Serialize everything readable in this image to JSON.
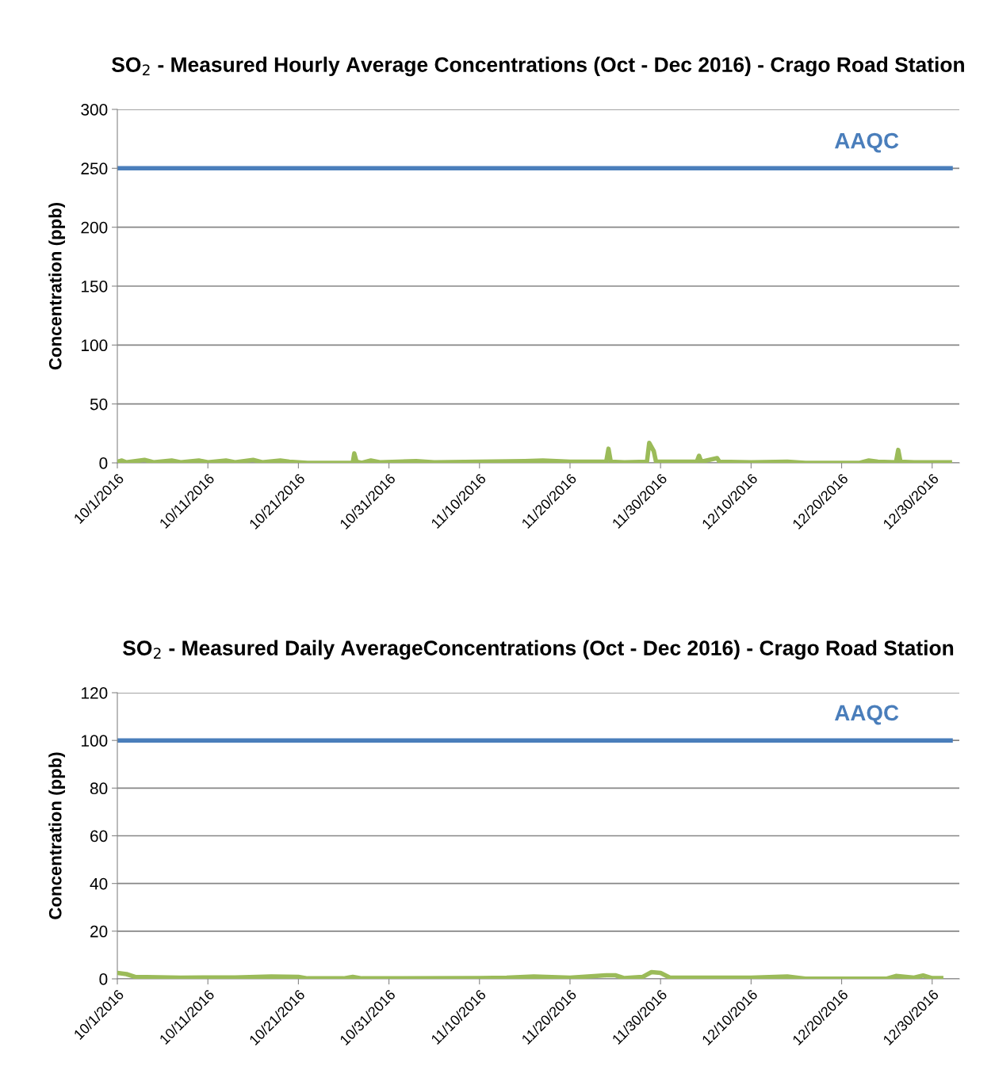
{
  "chart_data": [
    {
      "type": "line",
      "title": "SO$_{2}$ - Measured Hourly Average Concentrations (Oct - Dec 2016) - Crago Road Station",
      "ylabel": "Concentration (ppb)",
      "xlim": [
        "2016-10-01",
        "2017-01-02"
      ],
      "ylim": [
        0,
        300
      ],
      "yticks": [
        0,
        50,
        100,
        150,
        200,
        250,
        300
      ],
      "xticks": [
        {
          "value": "2016-10-01",
          "label": "10/1/2016"
        },
        {
          "value": "2016-10-11",
          "label": "10/11/2016"
        },
        {
          "value": "2016-10-21",
          "label": "10/21/2016"
        },
        {
          "value": "2016-10-31",
          "label": "10/31/2016"
        },
        {
          "value": "2016-11-10",
          "label": "11/10/2016"
        },
        {
          "value": "2016-11-20",
          "label": "11/20/2016"
        },
        {
          "value": "2016-11-30",
          "label": "11/30/2016"
        },
        {
          "value": "2016-12-10",
          "label": "12/10/2016"
        },
        {
          "value": "2016-12-20",
          "label": "12/20/2016"
        },
        {
          "value": "2016-12-30",
          "label": "12/30/2016"
        }
      ],
      "grid": "y",
      "marker": "none",
      "line_style": "solid",
      "series": [
        {
          "color": "#9bbb59",
          "x": [
            "2016-10-01T00:00",
            "2016-10-01T12:00",
            "2016-10-02T00:00",
            "2016-10-04T00:00",
            "2016-10-05T00:00",
            "2016-10-07T00:00",
            "2016-10-08T00:00",
            "2016-10-10T00:00",
            "2016-10-11T00:00",
            "2016-10-13T00:00",
            "2016-10-14T00:00",
            "2016-10-16T00:00",
            "2016-10-17T00:00",
            "2016-10-19T00:00",
            "2016-10-20T00:00",
            "2016-10-21T00:00",
            "2016-10-22T00:00",
            "2016-10-26T00:00",
            "2016-10-27T00:00",
            "2016-10-27T04:00",
            "2016-10-27T10:00",
            "2016-10-28T00:00",
            "2016-10-29T00:00",
            "2016-10-30T00:00",
            "2016-11-03T00:00",
            "2016-11-05T00:00",
            "2016-11-10T00:00",
            "2016-11-15T00:00",
            "2016-11-17T00:00",
            "2016-11-20T00:00",
            "2016-11-23T00:00",
            "2016-11-24T00:00",
            "2016-11-24T06:00",
            "2016-11-24T12:00",
            "2016-11-26T00:00",
            "2016-11-28T12:00",
            "2016-11-28T18:00",
            "2016-11-29T06:00",
            "2016-11-29T12:00",
            "2016-12-01T00:00",
            "2016-12-04T00:00",
            "2016-12-04T06:00",
            "2016-12-04T12:00",
            "2016-12-06T06:00",
            "2016-12-06T12:00",
            "2016-12-10T00:00",
            "2016-12-14T00:00",
            "2016-12-16T00:00",
            "2016-12-22T00:00",
            "2016-12-23T00:00",
            "2016-12-24T00:00",
            "2016-12-26T00:00",
            "2016-12-26T06:00",
            "2016-12-26T12:00",
            "2016-12-28T00:00",
            "2016-12-31T23:00"
          ],
          "values": [
            1,
            2,
            0.5,
            2.5,
            0.5,
            2,
            0.5,
            2,
            0.5,
            2,
            0.5,
            2.5,
            0.5,
            2,
            1,
            0.5,
            0,
            0,
            0,
            8,
            1,
            0,
            2,
            0.5,
            1.5,
            0.5,
            1,
            1.5,
            2,
            1,
            1,
            1,
            12,
            1,
            0.5,
            1,
            17,
            10,
            1,
            1,
            1,
            6,
            1,
            4,
            1,
            0.5,
            1,
            0,
            0,
            2,
            1,
            0.5,
            11,
            1,
            0.5,
            0.5
          ]
        }
      ],
      "ref_lines": [
        {
          "axis": "y",
          "value": 250,
          "label": "AAQC",
          "color": "#4a7ebb"
        }
      ]
    },
    {
      "type": "line",
      "title": "SO$_{2}$ - Measured Daily AverageConcentrations (Oct - Dec 2016) - Crago Road Station",
      "ylabel": "Concentration (ppb)",
      "xlim": [
        "2016-10-01",
        "2017-01-02"
      ],
      "ylim": [
        0,
        120
      ],
      "yticks": [
        0,
        20,
        40,
        60,
        80,
        100,
        120
      ],
      "xticks": [
        {
          "value": "2016-10-01",
          "label": "10/1/2016"
        },
        {
          "value": "2016-10-11",
          "label": "10/11/2016"
        },
        {
          "value": "2016-10-21",
          "label": "10/21/2016"
        },
        {
          "value": "2016-10-31",
          "label": "10/31/2016"
        },
        {
          "value": "2016-11-10",
          "label": "11/10/2016"
        },
        {
          "value": "2016-11-20",
          "label": "11/20/2016"
        },
        {
          "value": "2016-11-30",
          "label": "11/30/2016"
        },
        {
          "value": "2016-12-10",
          "label": "12/10/2016"
        },
        {
          "value": "2016-12-20",
          "label": "12/20/2016"
        },
        {
          "value": "2016-12-30",
          "label": "12/30/2016"
        }
      ],
      "grid": "y",
      "marker": "none",
      "line_style": "solid",
      "series": [
        {
          "color": "#9bbb59",
          "x": [
            "2016-10-01",
            "2016-10-02",
            "2016-10-03",
            "2016-10-08",
            "2016-10-14",
            "2016-10-18",
            "2016-10-21",
            "2016-10-22",
            "2016-10-26",
            "2016-10-27",
            "2016-10-28",
            "2016-11-10",
            "2016-11-13",
            "2016-11-16",
            "2016-11-20",
            "2016-11-24",
            "2016-11-25",
            "2016-11-26",
            "2016-11-28",
            "2016-11-29",
            "2016-11-30",
            "2016-12-01",
            "2016-12-10",
            "2016-12-14",
            "2016-12-16",
            "2016-12-25",
            "2016-12-26",
            "2016-12-28",
            "2016-12-29",
            "2016-12-30",
            "2016-12-31"
          ],
          "values": [
            2.5,
            2,
            0.8,
            0.5,
            0.6,
            1,
            0.8,
            0.2,
            0.2,
            0.8,
            0.2,
            0.3,
            0.5,
            1,
            0.5,
            1.5,
            1.5,
            0.3,
            0.8,
            2.8,
            2.5,
            0.6,
            0.5,
            1,
            0.1,
            0.1,
            1.2,
            0.5,
            1.4,
            0.3,
            0.3
          ]
        }
      ],
      "ref_lines": [
        {
          "axis": "y",
          "value": 100,
          "label": "AAQC",
          "color": "#4a7ebb"
        }
      ]
    }
  ]
}
